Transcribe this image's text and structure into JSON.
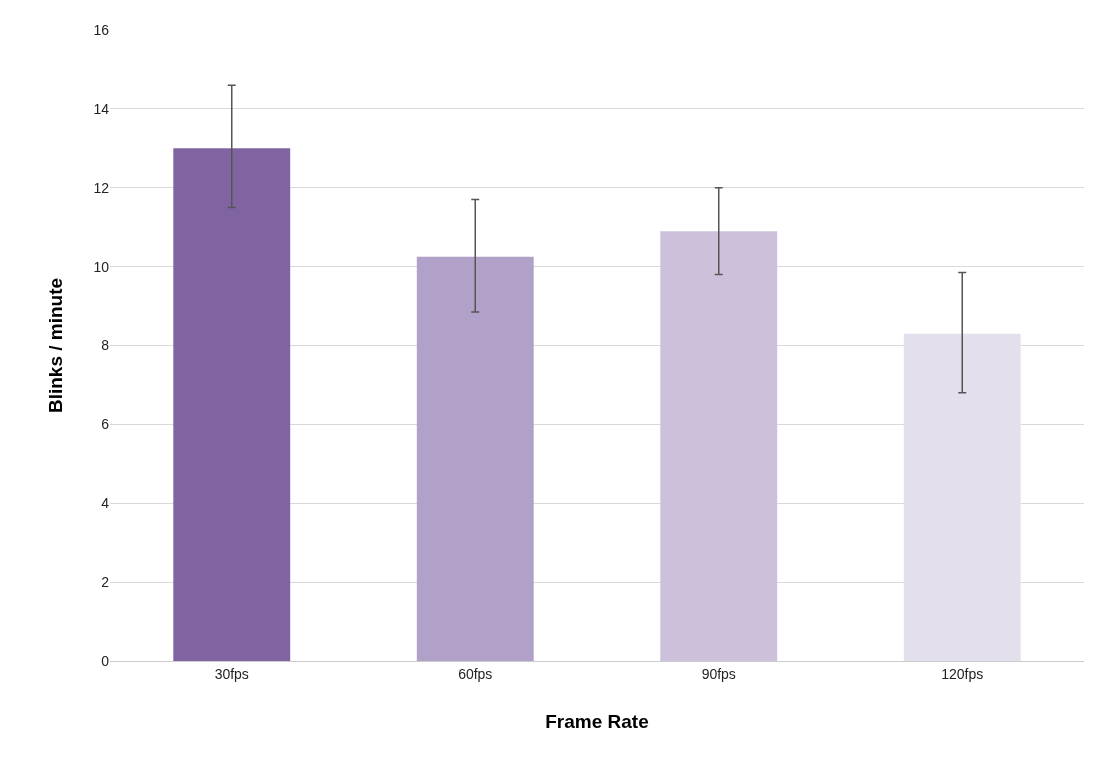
{
  "chart_data": {
    "type": "bar",
    "xlabel": "Frame Rate",
    "ylabel": "Blinks / minute",
    "categories": [
      "30fps",
      "60fps",
      "90fps",
      "120fps"
    ],
    "values": [
      13.0,
      10.25,
      10.9,
      8.3
    ],
    "colors": [
      "#8064a2",
      "#b1a0c7",
      "#ccc0da",
      "#e4dfec"
    ],
    "errors": [
      [
        11.5,
        14.6
      ],
      [
        8.85,
        11.7
      ],
      [
        9.8,
        12.0
      ],
      [
        6.8,
        9.85
      ]
    ],
    "ylim": [
      0,
      16
    ],
    "yticks": [
      0,
      2,
      4,
      6,
      8,
      10,
      12,
      14,
      16
    ],
    "grid": "y"
  }
}
